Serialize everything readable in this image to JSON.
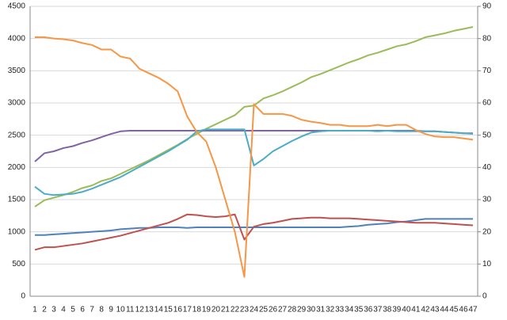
{
  "chart_data": {
    "type": "line",
    "categories": [
      1,
      2,
      3,
      4,
      5,
      6,
      7,
      8,
      9,
      10,
      11,
      12,
      13,
      14,
      15,
      16,
      17,
      18,
      19,
      20,
      21,
      22,
      23,
      24,
      25,
      26,
      27,
      28,
      29,
      30,
      31,
      32,
      33,
      34,
      35,
      36,
      37,
      38,
      39,
      40,
      41,
      42,
      43,
      44,
      45,
      46,
      47
    ],
    "series": [
      {
        "color": "#4f81bd",
        "values": [
          950,
          950,
          960,
          970,
          980,
          990,
          1000,
          1010,
          1020,
          1040,
          1050,
          1060,
          1060,
          1070,
          1070,
          1070,
          1060,
          1070,
          1070,
          1070,
          1070,
          1070,
          1070,
          1070,
          1070,
          1070,
          1070,
          1070,
          1070,
          1070,
          1070,
          1070,
          1070,
          1080,
          1090,
          1110,
          1120,
          1130,
          1150,
          1160,
          1180,
          1200,
          1200,
          1200,
          1200,
          1200,
          1200
        ]
      },
      {
        "color": "#c0504d",
        "values": [
          720,
          760,
          760,
          780,
          800,
          820,
          850,
          880,
          910,
          940,
          980,
          1020,
          1060,
          1100,
          1140,
          1200,
          1270,
          1260,
          1240,
          1230,
          1240,
          1270,
          880,
          1080,
          1120,
          1140,
          1170,
          1200,
          1210,
          1220,
          1220,
          1210,
          1210,
          1210,
          1200,
          1190,
          1180,
          1170,
          1160,
          1150,
          1140,
          1140,
          1140,
          1130,
          1120,
          1110,
          1100
        ]
      },
      {
        "color": "#9bbb59",
        "values": [
          1390,
          1490,
          1530,
          1570,
          1620,
          1680,
          1720,
          1790,
          1830,
          1900,
          1970,
          2040,
          2110,
          2190,
          2270,
          2350,
          2440,
          2520,
          2600,
          2670,
          2740,
          2810,
          2940,
          2960,
          3070,
          3120,
          3180,
          3250,
          3320,
          3400,
          3450,
          3510,
          3570,
          3630,
          3680,
          3740,
          3780,
          3830,
          3880,
          3910,
          3960,
          4020,
          4050,
          4080,
          4120,
          4150,
          4180
        ]
      },
      {
        "color": "#8064a2",
        "values": [
          2090,
          2220,
          2250,
          2300,
          2330,
          2380,
          2420,
          2470,
          2520,
          2560,
          2570,
          2570,
          2570,
          2570,
          2570,
          2570,
          2570,
          2570,
          2570,
          2570,
          2570,
          2570,
          2570,
          2570,
          2570,
          2570,
          2570,
          2570,
          2570,
          2570,
          2570,
          2570,
          2570,
          2570,
          2570,
          2570,
          2570,
          2570,
          2570,
          2570,
          2570,
          2560,
          2560,
          2550,
          2540,
          2530,
          2530
        ]
      },
      {
        "color": "#4bacc6",
        "values": [
          1700,
          1590,
          1570,
          1580,
          1590,
          1620,
          1670,
          1730,
          1790,
          1850,
          1930,
          2010,
          2090,
          2170,
          2250,
          2340,
          2430,
          2560,
          2590,
          2590,
          2590,
          2590,
          2590,
          2030,
          2130,
          2250,
          2330,
          2410,
          2480,
          2540,
          2560,
          2570,
          2570,
          2570,
          2570,
          2570,
          2560,
          2570,
          2560,
          2560,
          2560,
          2560,
          2560,
          2550,
          2540,
          2530,
          2520
        ]
      },
      {
        "color": "#f79646",
        "axis": "y2",
        "values": [
          80.4,
          80.4,
          80,
          79.8,
          79.4,
          78.6,
          78,
          76.6,
          76.6,
          74.4,
          73.8,
          70.6,
          69.2,
          67.8,
          66,
          63.6,
          55.8,
          51,
          48,
          40,
          30,
          20,
          6,
          59.6,
          56.6,
          56.6,
          56.6,
          56,
          54.8,
          54.2,
          53.8,
          53.2,
          53.2,
          52.8,
          52.8,
          52.8,
          53.2,
          52.8,
          53.2,
          53.2,
          51.6,
          50.4,
          49.6,
          49.4,
          49.4,
          49,
          48.6
        ]
      }
    ],
    "ylim": [
      0,
      4500
    ],
    "yticks": [
      0,
      500,
      1000,
      1500,
      2000,
      2500,
      3000,
      3500,
      4000,
      4500
    ],
    "y2lim": [
      0,
      90
    ],
    "y2ticks": [
      0,
      10,
      20,
      30,
      40,
      50,
      60,
      70,
      80,
      90
    ],
    "grid": true
  }
}
